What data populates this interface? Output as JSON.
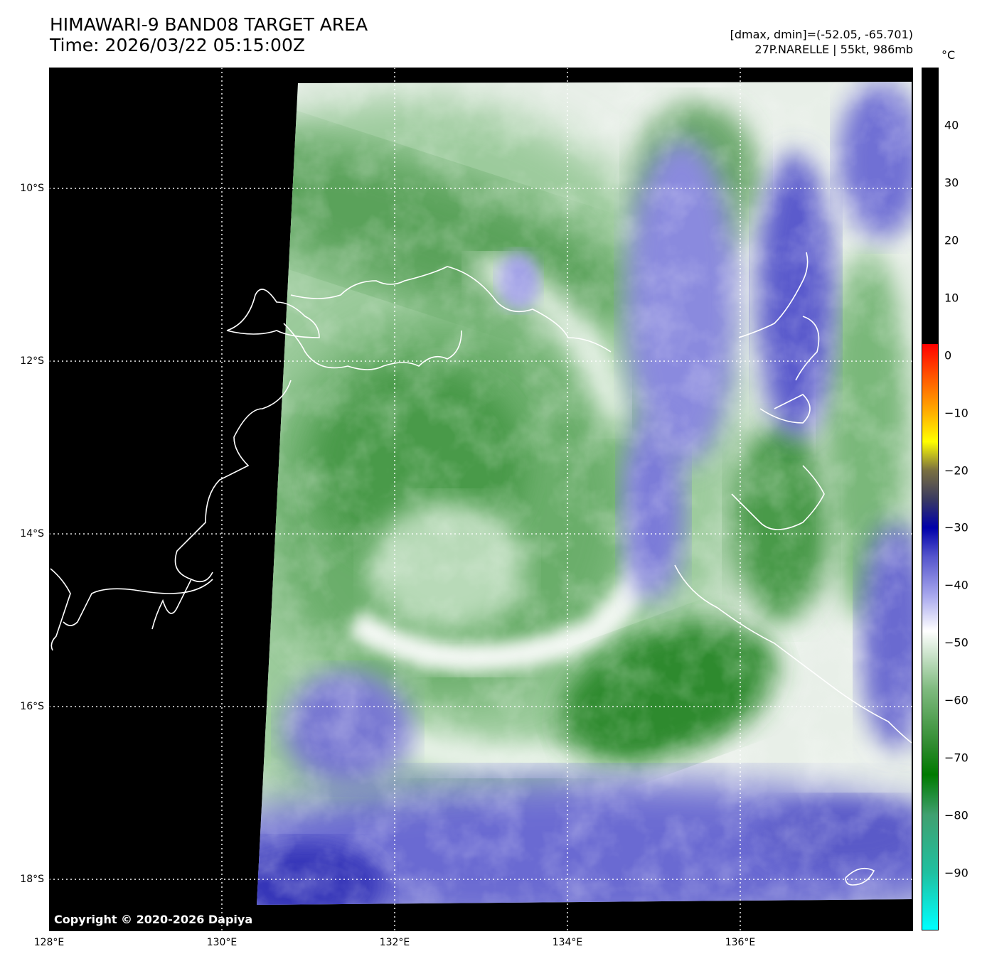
{
  "title": {
    "line1": "HIMAWARI-9 BAND08 TARGET AREA",
    "line2": "Time: 2026/03/22 05:15:00Z"
  },
  "info": {
    "line1": "[dmax, dmin]=(-52.05, -65.701)",
    "line2": "27P.NARELLE | 55kt, 986mb"
  },
  "map": {
    "lat_labels": [
      "10°S",
      "12°S",
      "14°S",
      "16°S",
      "18°S"
    ],
    "lon_labels": [
      "128°E",
      "130°E",
      "132°E",
      "134°E",
      "136°E"
    ],
    "lat_values": [
      -10,
      -12,
      -14,
      -16,
      -18
    ],
    "lon_values": [
      128,
      130,
      132,
      134,
      136
    ],
    "lat_range": [
      -18.6,
      -8.6
    ],
    "lon_range": [
      128,
      138
    ],
    "grid": "dotted",
    "background": "#000000",
    "storm_center_lat": -14.4,
    "storm_center_lon": 132.7
  },
  "colorbar": {
    "unit": "°C",
    "ticks": [
      "40",
      "30",
      "20",
      "10",
      "0",
      "−10",
      "−20",
      "−30",
      "−40",
      "−50",
      "−60",
      "−70",
      "−80",
      "−90"
    ],
    "tick_values": [
      40,
      30,
      20,
      10,
      0,
      -10,
      -20,
      -30,
      -40,
      -50,
      -60,
      -70,
      -80,
      -90
    ],
    "range": [
      -100,
      50
    ],
    "stops": [
      {
        "t": 50,
        "color": "#000000"
      },
      {
        "t": 2,
        "color": "#000000"
      },
      {
        "t": 2,
        "color": "#ff0000"
      },
      {
        "t": -4,
        "color": "#ff5a00"
      },
      {
        "t": -10,
        "color": "#ffb000"
      },
      {
        "t": -15,
        "color": "#ffff00"
      },
      {
        "t": -20,
        "color": "#7a7040"
      },
      {
        "t": -25,
        "color": "#3a3a60"
      },
      {
        "t": -30,
        "color": "#0000aa"
      },
      {
        "t": -35,
        "color": "#5555cc"
      },
      {
        "t": -42,
        "color": "#aaaaee"
      },
      {
        "t": -48,
        "color": "#ffffff"
      },
      {
        "t": -58,
        "color": "#80bb80"
      },
      {
        "t": -68,
        "color": "#2e8a2e"
      },
      {
        "t": -73,
        "color": "#007a00"
      },
      {
        "t": -80,
        "color": "#40a070"
      },
      {
        "t": -90,
        "color": "#20c0a0"
      },
      {
        "t": -100,
        "color": "#00ffff"
      }
    ]
  },
  "copyright": "Copyright © 2020-2026 Dapiya"
}
